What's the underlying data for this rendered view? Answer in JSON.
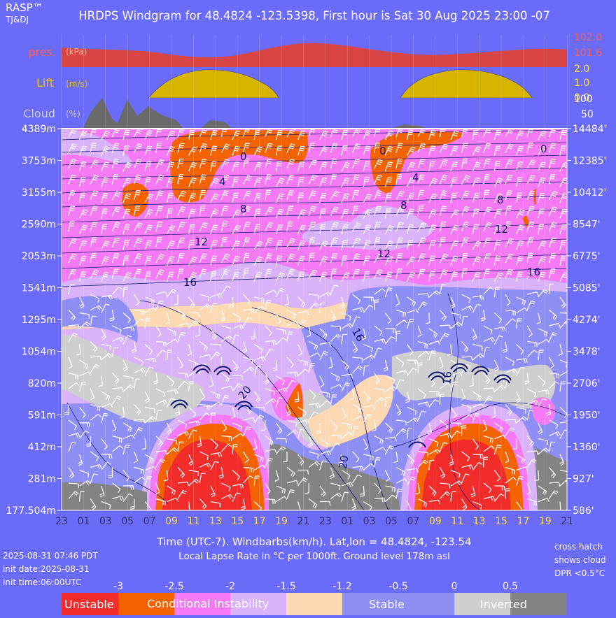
{
  "header": {
    "brand": "RASP™",
    "authors": "TJ&DJ",
    "title": "HRDPS Windgram for 48.4824 -123.5398, First hour is Sat 30 Aug 2025 23:00 -07"
  },
  "panels": {
    "pressure": {
      "label": "pres.",
      "unit": "(kPa)",
      "ticks": [
        "102.0",
        "101.6"
      ]
    },
    "lift": {
      "label": "Lift",
      "unit": "(m/s)",
      "ticks": [
        "2.0",
        "1.0",
        "0.0"
      ]
    },
    "cloud": {
      "label": "Cloud",
      "unit": "(%)",
      "ticks": [
        "100",
        "50"
      ]
    }
  },
  "altitude_m": [
    "4389m",
    "3753m",
    "3155m",
    "2590m",
    "2053m",
    "1541m",
    "1295m",
    "1054m",
    "820m",
    "591m",
    "412m",
    "281m",
    "177.504m"
  ],
  "altitude_ft": [
    "14484'",
    "12385'",
    "10412'",
    "8547'",
    "6775'",
    "5085'",
    "4274'",
    "3478'",
    "2706'",
    "1950'",
    "1360'",
    "927'",
    "586'"
  ],
  "hours": [
    {
      "label": "23",
      "day": false
    },
    {
      "label": "01",
      "day": false
    },
    {
      "label": "03",
      "day": false
    },
    {
      "label": "05",
      "day": false
    },
    {
      "label": "07",
      "day": false
    },
    {
      "label": "09",
      "day": true
    },
    {
      "label": "11",
      "day": true
    },
    {
      "label": "13",
      "day": true
    },
    {
      "label": "15",
      "day": true
    },
    {
      "label": "17",
      "day": true
    },
    {
      "label": "19",
      "day": true
    },
    {
      "label": "21",
      "day": false
    },
    {
      "label": "23",
      "day": false
    },
    {
      "label": "01",
      "day": false
    },
    {
      "label": "03",
      "day": false
    },
    {
      "label": "05",
      "day": false
    },
    {
      "label": "07",
      "day": false
    },
    {
      "label": "09",
      "day": true
    },
    {
      "label": "11",
      "day": true
    },
    {
      "label": "13",
      "day": true
    },
    {
      "label": "15",
      "day": true
    },
    {
      "label": "17",
      "day": true
    },
    {
      "label": "19",
      "day": true
    },
    {
      "label": "21",
      "day": false
    }
  ],
  "contour_labels": [
    "0",
    "4",
    "8",
    "12",
    "16",
    "20",
    "0",
    "4",
    "8",
    "12",
    "16",
    "20",
    "0",
    "8",
    "12",
    "16",
    "16"
  ],
  "footer": {
    "xlabel": "Time (UTC-7). Windbarbs(km/h). Lat,lon = 48.4824, -123.54",
    "sublabel": "Local Lapse Rate in °C per 1000ft.   Ground level 178m asl",
    "run_time": "2025-08-31 07:46 PDT",
    "init_date": "init date:2025-08-31",
    "init_time": "init time:06:00UTC",
    "note_lines": [
      "cross hatch",
      "shows cloud",
      "DPR <0.5°C"
    ]
  },
  "legend": {
    "ticks": [
      "-3",
      "-2.5",
      "-2",
      "-1.5",
      "-1.2",
      "-0.5",
      "0",
      "0.5"
    ],
    "labels": [
      "Unstable",
      "Conditional Instability",
      "Stable",
      "Inverted"
    ]
  },
  "colors": {
    "background": "#6b6bfa",
    "pressure": "#d94545",
    "lift": "#d6b400",
    "cloud": "#6a6a6a",
    "unstable": "#f22b2b",
    "conditional": "#f46300",
    "pink": "#f57af3",
    "lavender": "#d9b2f9",
    "peach": "#fcd9b3",
    "stable": "#8f8ef5",
    "grey": "#cfcfcf",
    "inverted": "#838383"
  },
  "chart_data": {
    "type": "heatmap",
    "title": "HRDPS Windgram for 48.4824 -123.5398, First hour is Sat 30 Aug 2025 23:00 -07",
    "x_hours": [
      "23",
      "01",
      "03",
      "05",
      "07",
      "09",
      "11",
      "13",
      "15",
      "17",
      "19",
      "21",
      "23",
      "01",
      "03",
      "05",
      "07",
      "09",
      "11",
      "13",
      "15",
      "17",
      "19",
      "21"
    ],
    "y_levels_m": [
      4389,
      3753,
      3155,
      2590,
      2053,
      1541,
      1295,
      1054,
      820,
      591,
      412,
      281,
      177.504
    ],
    "y_levels_ft": [
      14484,
      12385,
      10412,
      8547,
      6775,
      5085,
      4274,
      3478,
      2706,
      1950,
      1360,
      927,
      586
    ],
    "lapse_rate_bins": [
      -3,
      -2.5,
      -2,
      -1.5,
      -1.2,
      -0.5,
      0,
      0.5
    ],
    "temperature_contours_c": [
      0,
      4,
      8,
      12,
      16,
      20
    ],
    "pressure_ylim_kpa": [
      101.6,
      102.0
    ],
    "lift_ylim_ms": [
      0.0,
      2.0
    ],
    "cloud_ylim_pct": [
      0,
      100
    ],
    "ground_level_m": 178
  }
}
